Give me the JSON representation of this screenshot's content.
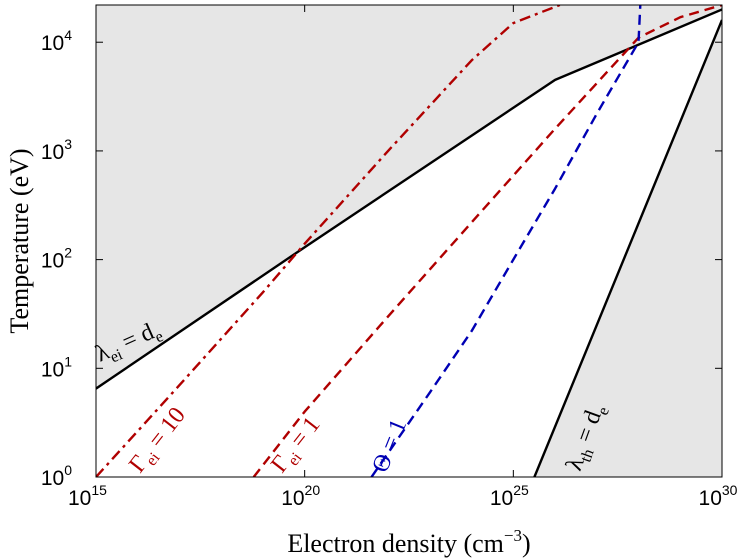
{
  "chart_data": {
    "type": "line",
    "xscale": "log",
    "yscale": "log",
    "xlabel": "Electron density (cm",
    "xlabel_sup": "−3",
    "xlabel_close": ")",
    "ylabel": "Temperature (eV)",
    "xlim": [
      1000000000000000.0,
      1e+30
    ],
    "ylim": [
      1,
      22000
    ],
    "xticks": [
      {
        "base": "10",
        "exp": "15",
        "value": 1000000000000000.0
      },
      {
        "base": "10",
        "exp": "20",
        "value": 1e+20
      },
      {
        "base": "10",
        "exp": "25",
        "value": 1e+25
      },
      {
        "base": "10",
        "exp": "30",
        "value": 1e+30
      }
    ],
    "yticks": [
      {
        "base": "10",
        "exp": "0",
        "value": 1
      },
      {
        "base": "10",
        "exp": "1",
        "value": 10
      },
      {
        "base": "10",
        "exp": "2",
        "value": 100
      },
      {
        "base": "10",
        "exp": "3",
        "value": 1000
      },
      {
        "base": "10",
        "exp": "4",
        "value": 10000
      }
    ],
    "grid": false,
    "shaded_color": "#e6e6e6",
    "series": [
      {
        "key": "lambda_ei",
        "color": "#000000",
        "dash": "solid",
        "x": [
          1000000000000000.0,
          1e+20,
          1e+26,
          1e+30
        ],
        "y": [
          6.5,
          130,
          4500,
          20000
        ]
      },
      {
        "key": "lambda_th",
        "color": "#000000",
        "dash": "solid",
        "x": [
          3.2e+25,
          1e+30
        ],
        "y": [
          1,
          16000
        ]
      },
      {
        "key": "gamma10",
        "color": "#b00000",
        "dash": "dashdot",
        "x": [
          1000000000000000.0,
          1e+17,
          1e+19,
          1e+20,
          1e+22,
          1e+24,
          1e+25,
          1.3e+26
        ],
        "y": [
          1,
          7,
          50,
          140,
          1000,
          6800,
          15000,
          22000
        ]
      },
      {
        "key": "gamma1",
        "color": "#b00000",
        "dash": "dashed",
        "x": [
          6e+18,
          1e+20,
          1e+22,
          1e+24,
          1e+26,
          1e+28,
          1e+29,
          1e+30
        ],
        "y": [
          1,
          4,
          30,
          220,
          1600,
          11000,
          17000,
          22000
        ]
      },
      {
        "key": "theta1",
        "color": "#0000b4",
        "dash": "dashed",
        "x": [
          4e+21,
          1e+23,
          1e+24,
          1e+25,
          1e+26,
          1e+27,
          1e+28,
          1.1e+28
        ],
        "y": [
          1,
          6,
          22,
          100,
          450,
          2200,
          10000,
          22000
        ]
      }
    ],
    "annotations": [
      {
        "key": "lambda_ei",
        "pre": "λ",
        "sub": "ei",
        "post": " = d",
        "post_sub": "e",
        "color": "#000000",
        "angle": -24
      },
      {
        "key": "gamma10",
        "pre": "Γ",
        "sub": "ei",
        "post": " = 10",
        "post_sub": "",
        "color": "#b00000",
        "angle": -52
      },
      {
        "key": "gamma1",
        "pre": "Γ",
        "sub": "ei",
        "post": " = 1",
        "post_sub": "",
        "color": "#b00000",
        "angle": -52
      },
      {
        "key": "theta1",
        "pre": "Θ",
        "sub": "",
        "post": " = 1",
        "post_sub": "",
        "color": "#0000b4",
        "angle": -68
      },
      {
        "key": "lambda_th",
        "pre": "λ",
        "sub": "th",
        "post": " = d",
        "post_sub": "e",
        "color": "#000000",
        "angle": -70
      }
    ]
  }
}
